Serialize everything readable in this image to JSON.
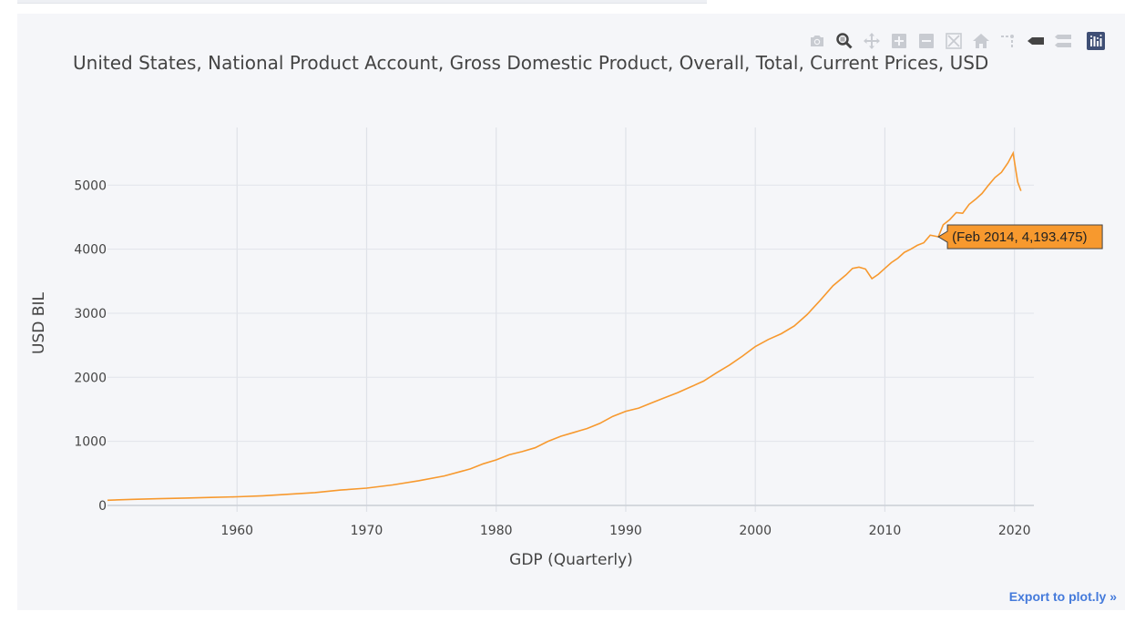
{
  "modebar": {
    "buttons": [
      {
        "name": "camera-icon",
        "title": "Download plot as a png"
      },
      {
        "name": "zoom-icon",
        "title": "Zoom"
      },
      {
        "name": "pan-icon",
        "title": "Pan"
      },
      {
        "name": "zoom-in-icon",
        "title": "Zoom in"
      },
      {
        "name": "zoom-out-icon",
        "title": "Zoom out"
      },
      {
        "name": "autoscale-icon",
        "title": "Autoscale"
      },
      {
        "name": "home-icon",
        "title": "Reset axes"
      },
      {
        "name": "spikelines-icon",
        "title": "Toggle Spike Lines"
      },
      {
        "name": "hover-closest-icon",
        "title": "Show closest data on hover"
      },
      {
        "name": "hover-compare-icon",
        "title": "Compare data on hover"
      },
      {
        "name": "plotly-logo-icon",
        "title": "Produced with Plotly"
      }
    ],
    "active_color": "#444444",
    "inactive_color": "#c8cbd1",
    "logo_color": "#3f4f75"
  },
  "export_label": "Export to plot.ly »",
  "chart_data": {
    "type": "line",
    "title": "United States, National Product Account, Gross Domestic Product, Overall, Total, Current Prices, USD",
    "xlabel": "GDP (Quarterly)",
    "ylabel": "USD BIL",
    "xlim": [
      1950,
      2021.5
    ],
    "ylim": [
      -100,
      5900
    ],
    "x_ticks": [
      1960,
      1970,
      1980,
      1990,
      2000,
      2010,
      2020
    ],
    "y_ticks": [
      0,
      1000,
      2000,
      3000,
      4000,
      5000
    ],
    "grid": true,
    "line_color": "#f7992e",
    "series": [
      {
        "x": [
          1950,
          1952,
          1954,
          1956,
          1958,
          1960,
          1962,
          1964,
          1966,
          1968,
          1970,
          1972,
          1974,
          1976,
          1978,
          1979,
          1980,
          1981,
          1982,
          1983,
          1984,
          1985,
          1986,
          1987,
          1988,
          1989,
          1990,
          1991,
          1992,
          1993,
          1994,
          1995,
          1996,
          1997,
          1998,
          1999,
          2000,
          2001,
          2002,
          2003,
          2004,
          2005,
          2006,
          2007,
          2007.5,
          2008,
          2008.5,
          2009,
          2009.5,
          2010,
          2010.5,
          2011,
          2011.5,
          2012,
          2012.5,
          2013,
          2013.5,
          2014.125,
          2014.5,
          2015,
          2015.5,
          2016,
          2016.5,
          2017,
          2017.5,
          2018,
          2018.5,
          2019,
          2019.5,
          2019.9,
          2020.25,
          2020.5
        ],
        "y": [
          80,
          95,
          105,
          115,
          125,
          135,
          150,
          175,
          200,
          240,
          270,
          320,
          385,
          460,
          570,
          650,
          710,
          790,
          840,
          900,
          1000,
          1080,
          1140,
          1200,
          1280,
          1390,
          1470,
          1520,
          1600,
          1680,
          1760,
          1850,
          1940,
          2070,
          2190,
          2330,
          2480,
          2590,
          2680,
          2800,
          2980,
          3200,
          3430,
          3600,
          3700,
          3720,
          3690,
          3540,
          3610,
          3700,
          3790,
          3860,
          3950,
          4000,
          4060,
          4100,
          4220,
          4193.475,
          4380,
          4460,
          4570,
          4560,
          4700,
          4780,
          4870,
          5000,
          5120,
          5200,
          5350,
          5500,
          5050,
          4910
        ]
      }
    ],
    "hover": {
      "x": 2014.125,
      "y": 4193.475,
      "label": "(Feb 2014, 4,193.475)",
      "bg": "#f7992e",
      "border": "#444444"
    }
  }
}
